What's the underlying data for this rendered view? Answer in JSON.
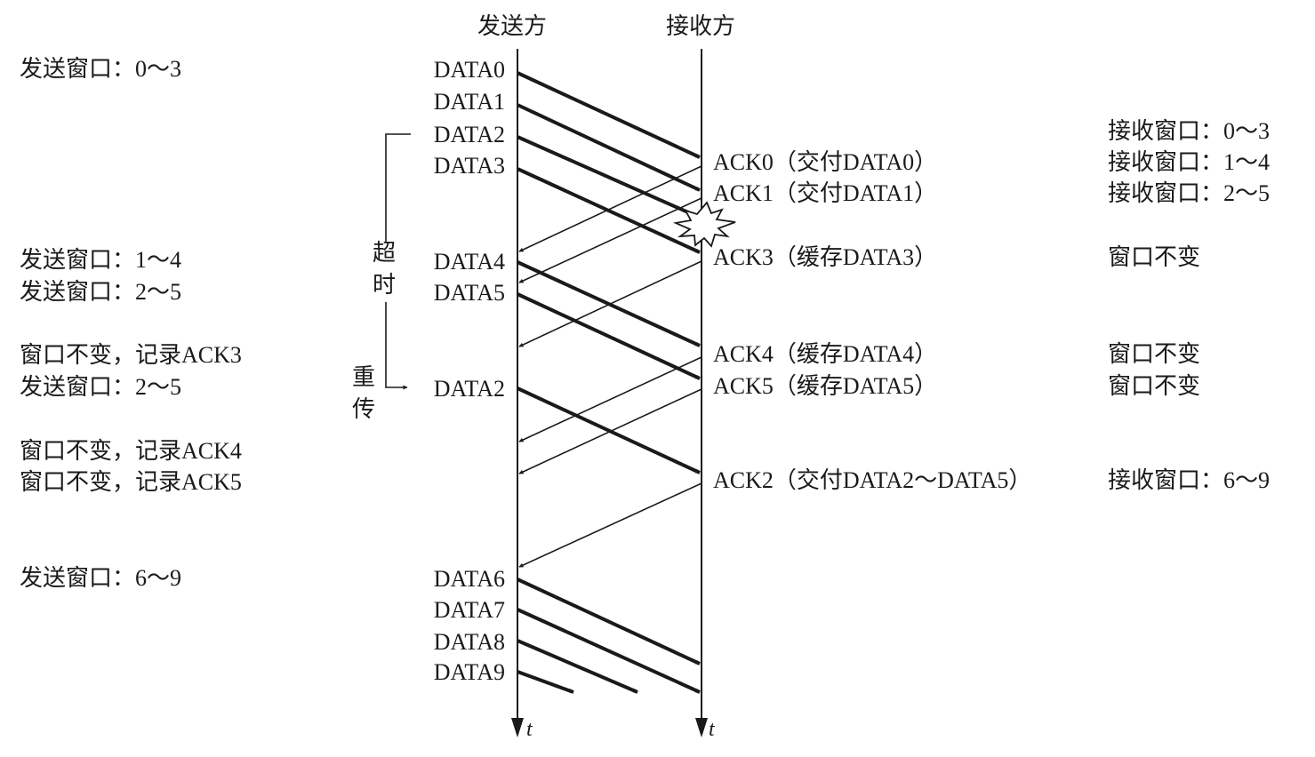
{
  "headers": {
    "sender": "发送方",
    "receiver": "接收方"
  },
  "axis_label": "t",
  "timer_labels": {
    "timeout_1": "超",
    "timeout_2": "时",
    "retransmit_1": "重",
    "retransmit_2": "传"
  },
  "sender_packets": [
    "DATA0",
    "DATA1",
    "DATA2",
    "DATA3",
    "DATA4",
    "DATA5",
    "DATA2",
    "DATA6",
    "DATA7",
    "DATA8",
    "DATA9"
  ],
  "receiver_acks": [
    "ACK0（交付DATA0）",
    "ACK1（交付DATA1）",
    "ACK3（缓存DATA3）",
    "ACK4（缓存DATA4）",
    "ACK5（缓存DATA5）",
    "ACK2（交付DATA2～DATA5）"
  ],
  "sender_window_notes": [
    "发送窗口：0～3",
    "发送窗口：1～4",
    "发送窗口：2～5",
    "窗口不变，记录ACK3",
    "发送窗口：2～5",
    "窗口不变，记录ACK4",
    "窗口不变，记录ACK5",
    "发送窗口：6～9"
  ],
  "receiver_window_notes": [
    "接收窗口：0～3",
    "接收窗口：1～4",
    "接收窗口：2～5",
    "窗口不变",
    "窗口不变",
    "窗口不变",
    "接收窗口：6～9"
  ]
}
